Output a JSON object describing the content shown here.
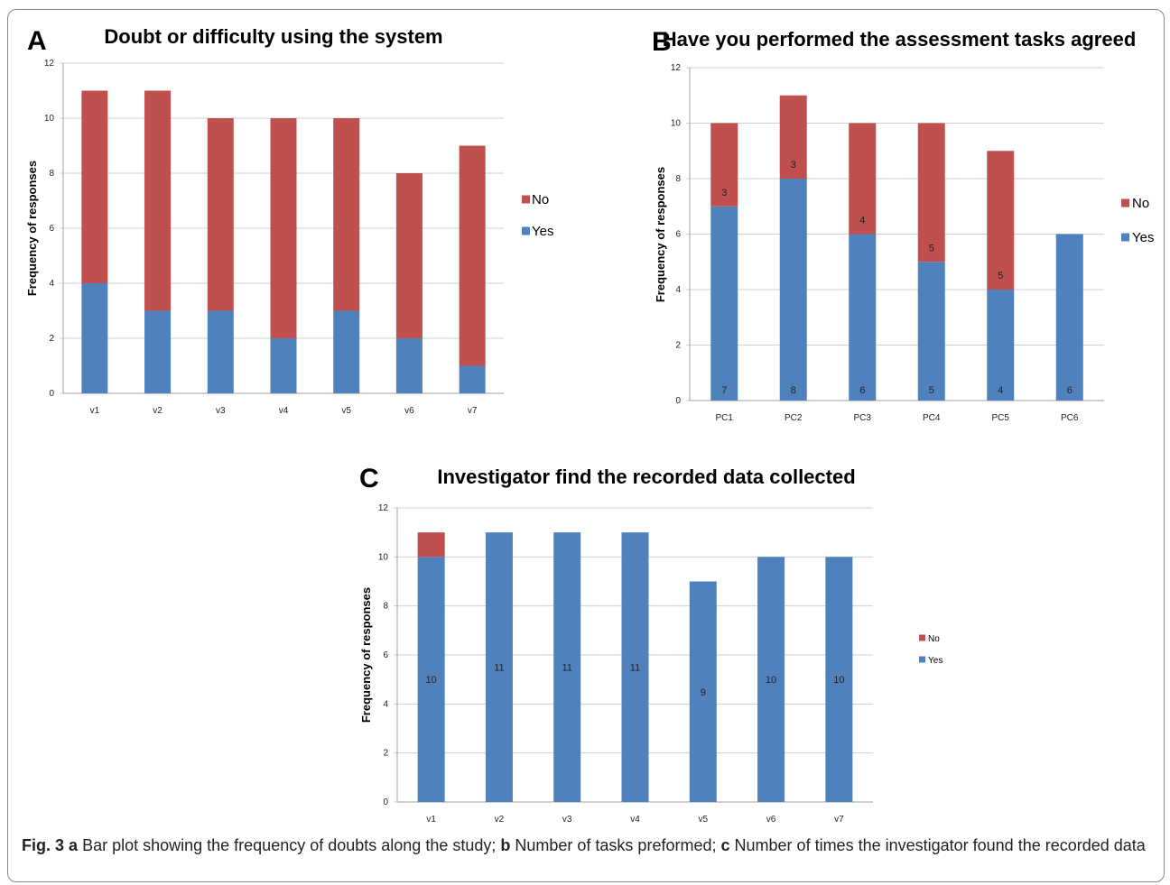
{
  "colors": {
    "yes": "#4f81bd",
    "no": "#c0504d",
    "grid": "#d0d0d0",
    "axis": "#a0a0a0"
  },
  "chart_data": [
    {
      "panel": "A",
      "type": "bar",
      "stacked": true,
      "title": "Doubt or difficulty using the system",
      "ylabel": "Frequency of responses",
      "xlabel": "",
      "ylim": [
        0,
        12
      ],
      "yticks": [
        0,
        2,
        4,
        6,
        8,
        10,
        12
      ],
      "categories": [
        "v1",
        "v2",
        "v3",
        "v4",
        "v5",
        "v6",
        "v7"
      ],
      "series": [
        {
          "name": "Yes",
          "values": [
            4,
            3,
            3,
            2,
            3,
            2,
            1
          ],
          "labels": []
        },
        {
          "name": "No",
          "values": [
            7,
            8,
            7,
            8,
            7,
            6,
            8
          ],
          "labels": []
        }
      ],
      "legend": "right"
    },
    {
      "panel": "B",
      "type": "bar",
      "stacked": true,
      "title": "Have you performed the assessment tasks agreed",
      "ylabel": "Frequency of responses",
      "xlabel": "",
      "ylim": [
        0,
        12
      ],
      "yticks": [
        0,
        2,
        4,
        6,
        8,
        10,
        12
      ],
      "categories": [
        "PC1",
        "PC2",
        "PC3",
        "PC4",
        "PC5",
        "PC6"
      ],
      "series": [
        {
          "name": "Yes",
          "values": [
            7,
            8,
            6,
            5,
            4,
            6
          ],
          "labels": [
            "7",
            "8",
            "6",
            "5",
            "4",
            "6"
          ]
        },
        {
          "name": "No",
          "values": [
            3,
            3,
            4,
            5,
            5,
            0
          ],
          "labels": [
            "3",
            "3",
            "4",
            "5",
            "5",
            ""
          ]
        }
      ],
      "legend": "right"
    },
    {
      "panel": "C",
      "type": "bar",
      "stacked": true,
      "title": "Investigator find the recorded data collected",
      "ylabel": "Frequency of responses",
      "xlabel": "",
      "ylim": [
        0,
        12
      ],
      "yticks": [
        0,
        2,
        4,
        6,
        8,
        10,
        12
      ],
      "categories": [
        "v1",
        "v2",
        "v3",
        "v4",
        "v5",
        "v6",
        "v7"
      ],
      "series": [
        {
          "name": "Yes",
          "values": [
            10,
            11,
            11,
            11,
            9,
            10,
            10
          ],
          "labels": [
            "10",
            "11",
            "11",
            "11",
            "9",
            "10",
            "10"
          ]
        },
        {
          "name": "No",
          "values": [
            1,
            0,
            0,
            0,
            0,
            0,
            0
          ],
          "labels": []
        }
      ],
      "legend": "right"
    }
  ],
  "caption": {
    "fig": "Fig. 3",
    "a_letter": "a",
    "a_text": "Bar plot showing the frequency of doubts along the study;",
    "b_letter": "b",
    "b_text": "Number of tasks preformed;",
    "c_letter": "c",
    "c_text": "Number of times the investigator found the recorded data"
  }
}
